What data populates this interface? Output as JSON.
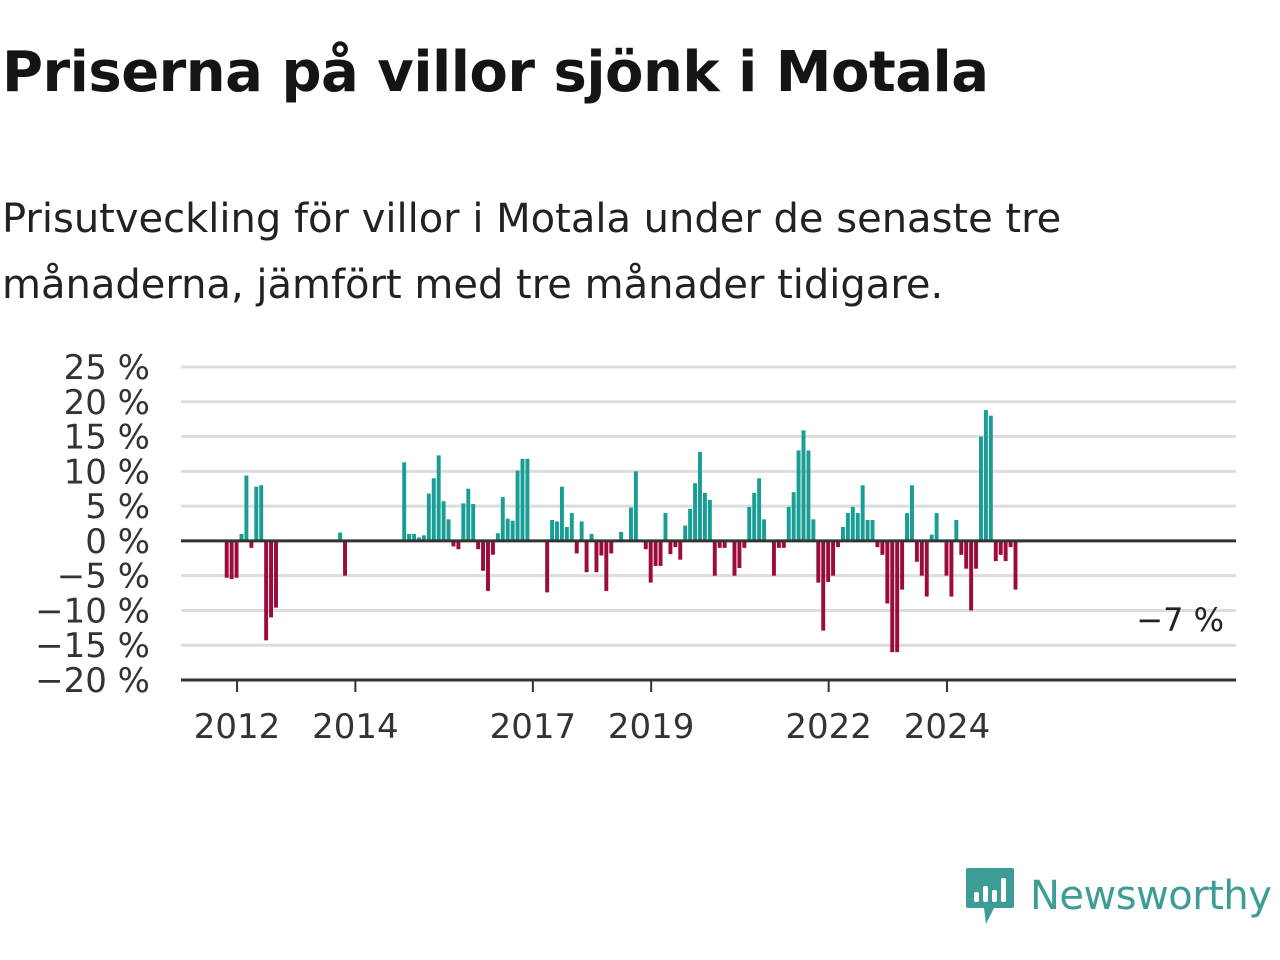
{
  "title": "Priserna på villor sjönk i Motala",
  "subtitle": "Prisutveckling för villor i Motala under de senaste tre månaderna, jämfört med tre månader tidigare.",
  "brand": {
    "name": "Newsworthy"
  },
  "colors": {
    "positive": "#199e96",
    "negative": "#9b0c3c",
    "grid": "#dddddd",
    "axis": "#333333"
  },
  "chart_data": {
    "type": "bar",
    "title": "Priserna på villor sjönk i Motala",
    "subtitle": "Prisutveckling för villor i Motala under de senaste tre månaderna, jämfört med tre månader tidigare.",
    "frequency": "monthly",
    "start": "2011-11",
    "ylim": [
      -20,
      25
    ],
    "yticks": [
      25,
      20,
      15,
      10,
      5,
      0,
      -5,
      -10,
      -15,
      -20
    ],
    "ytick_labels": [
      "25 %",
      "20 %",
      "15 %",
      "10 %",
      "5 %",
      "0 %",
      "−5 %",
      "−10 %",
      "−15 %",
      "−20 %"
    ],
    "xticks": [
      {
        "label": "2012",
        "month": "2012-01"
      },
      {
        "label": "2014",
        "month": "2014-01"
      },
      {
        "label": "2017",
        "month": "2017-01"
      },
      {
        "label": "2019",
        "month": "2019-01"
      },
      {
        "label": "2022",
        "month": "2022-01"
      },
      {
        "label": "2024",
        "month": "2024-01"
      }
    ],
    "last_value_label": "−7 %",
    "values": [
      -5.3,
      -5.5,
      -5.3,
      1.0,
      9.4,
      -1.0,
      7.8,
      8.0,
      -14.3,
      -11.0,
      -9.6,
      null,
      null,
      null,
      null,
      null,
      null,
      null,
      null,
      null,
      null,
      null,
      null,
      1.2,
      -5.0,
      null,
      null,
      null,
      null,
      null,
      null,
      null,
      null,
      null,
      null,
      null,
      11.3,
      1.0,
      1.0,
      0.5,
      0.8,
      6.8,
      9.0,
      12.3,
      5.7,
      3.1,
      -0.8,
      -1.2,
      5.4,
      7.5,
      5.3,
      -1.2,
      -4.3,
      -7.2,
      -2.0,
      1.1,
      6.3,
      3.2,
      2.9,
      10.1,
      11.8,
      11.8,
      null,
      null,
      null,
      -7.4,
      3.0,
      2.8,
      7.8,
      2.0,
      4.0,
      -1.8,
      2.8,
      -4.5,
      1.0,
      -4.5,
      -2.1,
      -7.2,
      -1.8,
      null,
      1.3,
      null,
      4.8,
      10.0,
      null,
      -1.2,
      -6.0,
      -3.6,
      -3.6,
      4.0,
      -1.9,
      -0.9,
      -2.7,
      2.2,
      4.6,
      8.3,
      12.8,
      6.9,
      5.9,
      -5.0,
      -1.0,
      -1.0,
      null,
      -5.0,
      -3.9,
      -1.0,
      4.9,
      6.9,
      9.0,
      3.1,
      null,
      -5.0,
      -1.0,
      -1.0,
      4.9,
      7.0,
      13.0,
      15.9,
      13.0,
      3.1,
      -6.0,
      -12.9,
      -5.9,
      -5.0,
      -0.9,
      2.0,
      4.0,
      4.9,
      4.0,
      8.0,
      3.0,
      3.0,
      -0.9,
      -2.0,
      -9.0,
      -16.0,
      -16.0,
      -7.0,
      4.0,
      8.0,
      -3.0,
      -5.0,
      -8.0,
      0.9,
      4.0,
      null,
      -5.0,
      -8.0,
      3.0,
      -2.0,
      -4.0,
      -10.0,
      -4.0,
      15.0,
      18.8,
      18.0,
      -2.9,
      -2.0,
      -2.9,
      -0.9,
      -7.0
    ]
  }
}
